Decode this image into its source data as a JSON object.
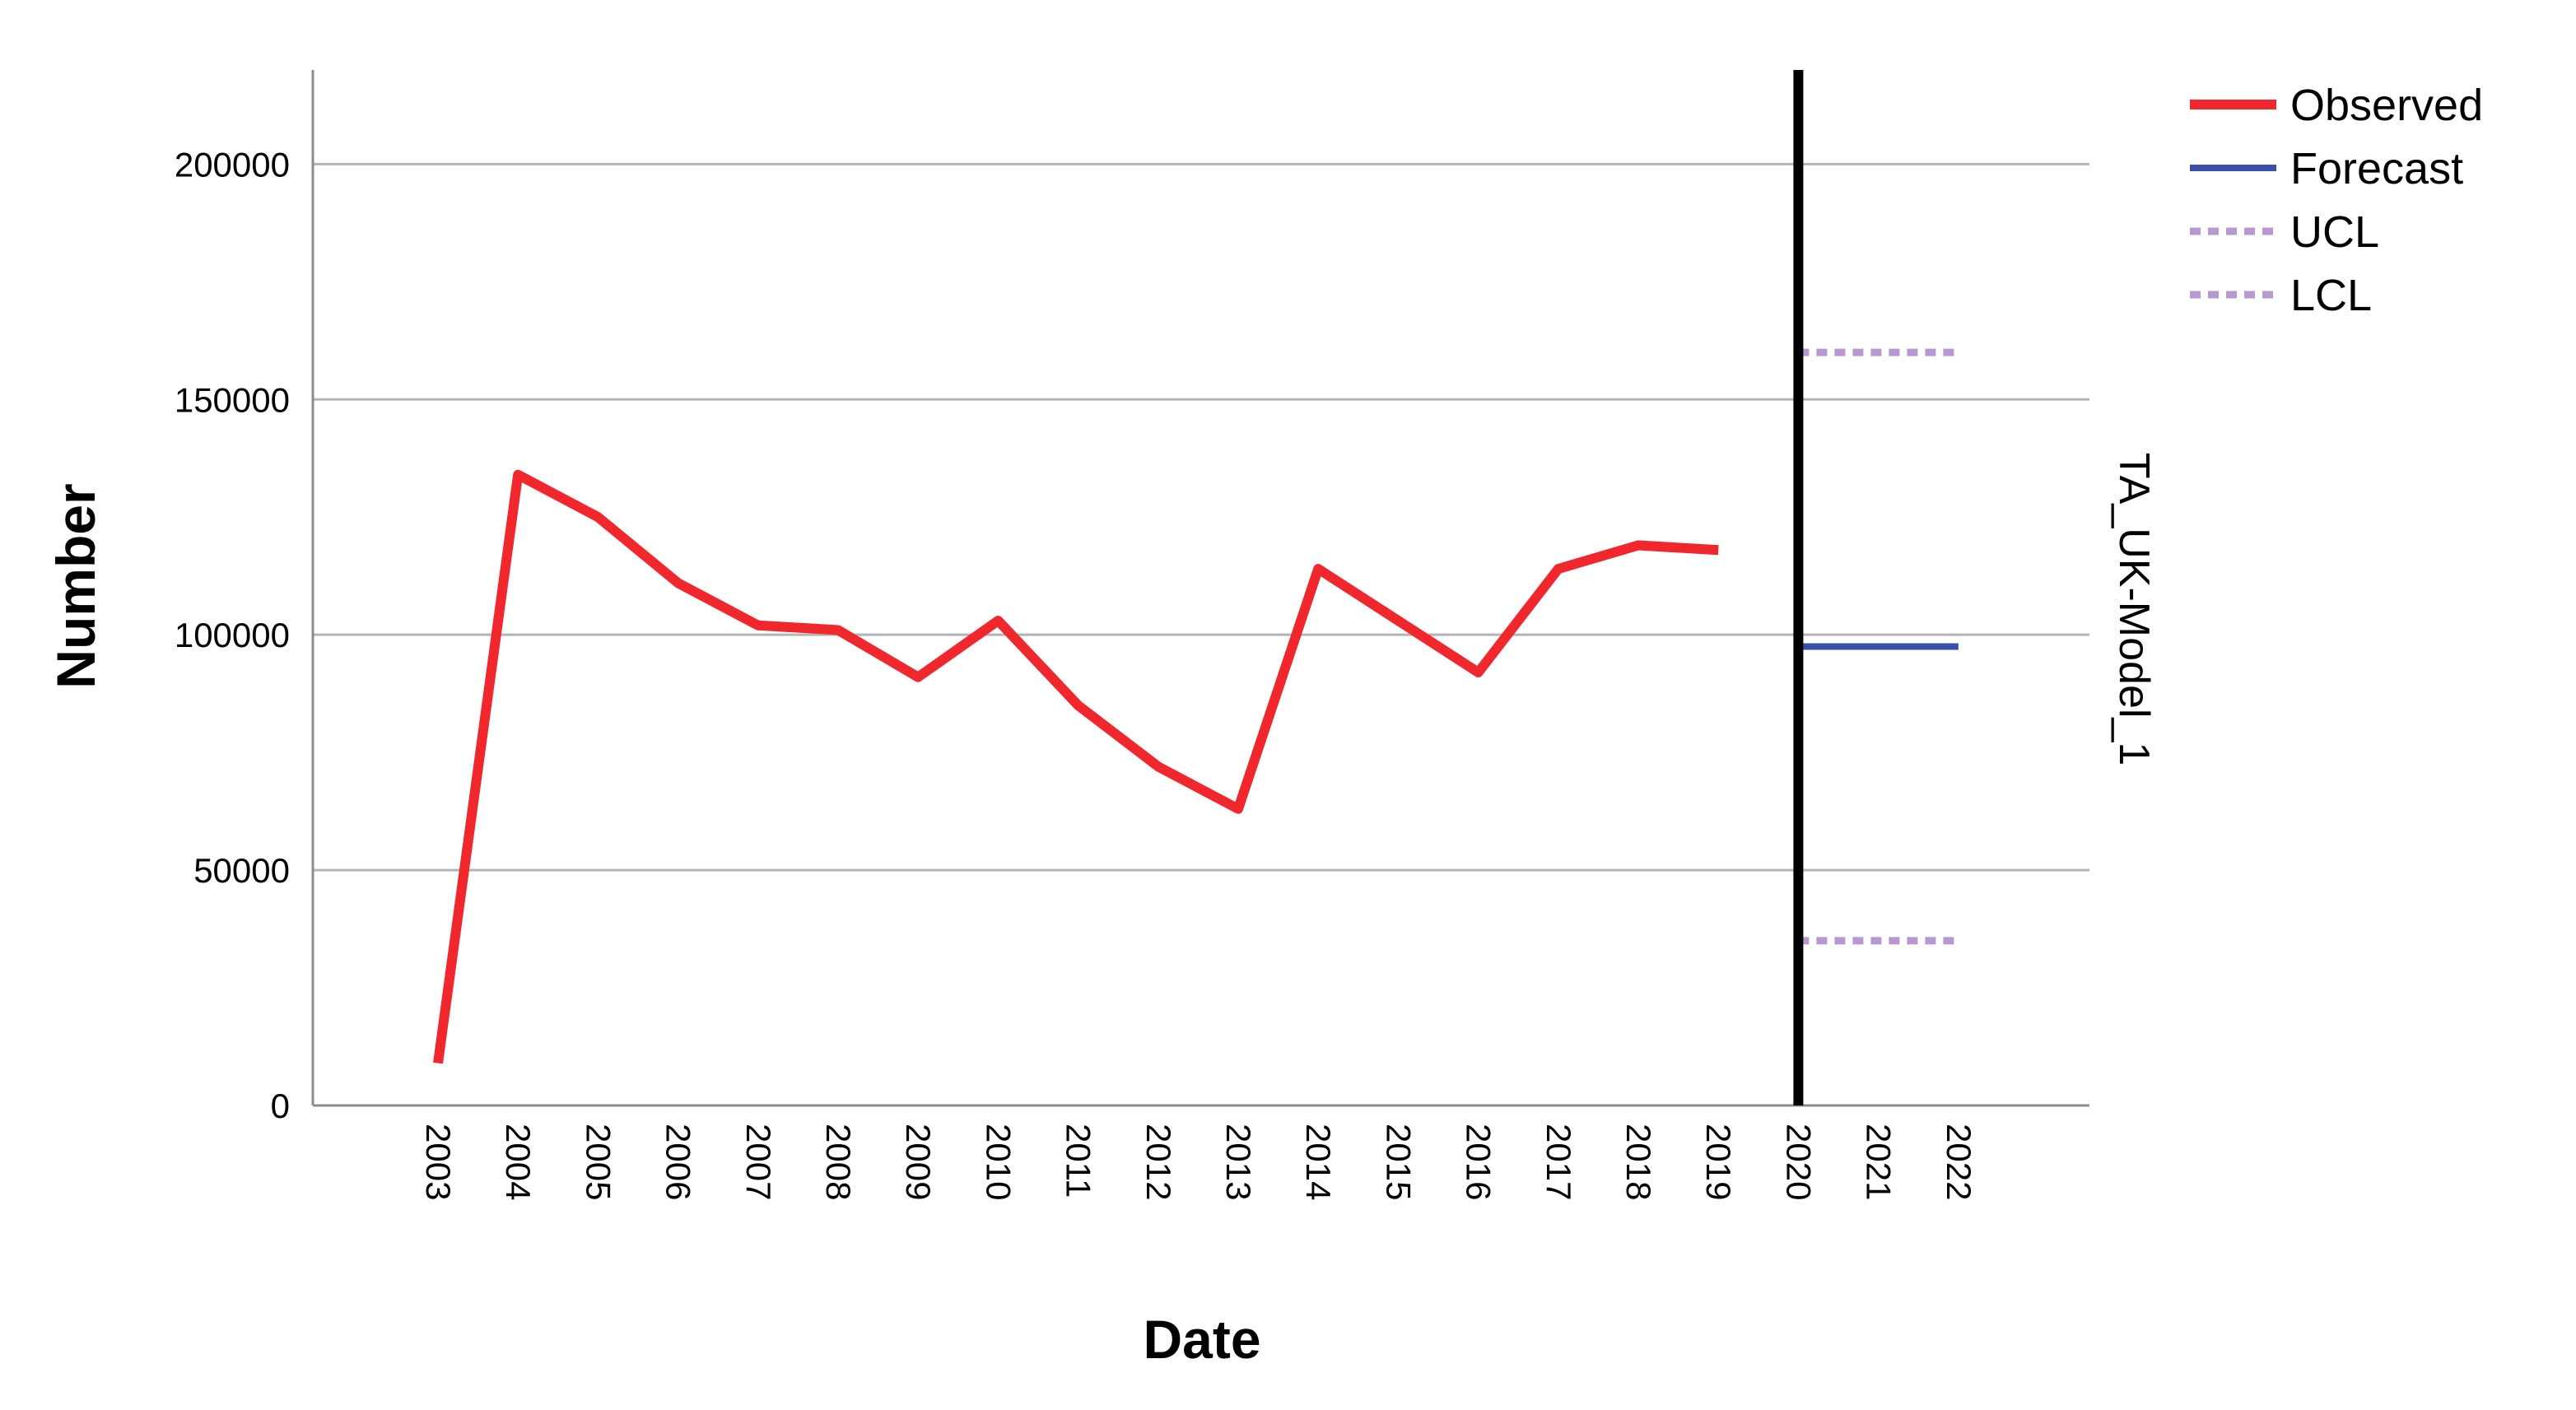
{
  "chart_data": {
    "type": "line",
    "xlabel": "Date",
    "ylabel": "Number",
    "panel_label": "TA_UK-Model_1",
    "ylim": [
      0,
      220000
    ],
    "y_ticks": [
      0,
      50000,
      100000,
      150000,
      200000
    ],
    "categories": [
      "2003",
      "2004",
      "2005",
      "2006",
      "2007",
      "2008",
      "2009",
      "2010",
      "2011",
      "2012",
      "2013",
      "2014",
      "2015",
      "2016",
      "2017",
      "2018",
      "2019",
      "2020",
      "2021",
      "2022"
    ],
    "reference_line_x": "2020",
    "grid": true,
    "legend_position": "top-right",
    "series": [
      {
        "name": "Observed",
        "color": "#f0282d",
        "style": "solid",
        "x": [
          "2003",
          "2004",
          "2005",
          "2006",
          "2007",
          "2008",
          "2009",
          "2010",
          "2011",
          "2012",
          "2013",
          "2014",
          "2015",
          "2016",
          "2017",
          "2018",
          "2019"
        ],
        "values": [
          9000,
          134000,
          125000,
          111000,
          102000,
          101000,
          91000,
          103000,
          85000,
          72000,
          63000,
          114000,
          103000,
          92000,
          114000,
          119000,
          118000
        ]
      },
      {
        "name": "Forecast",
        "color": "#3a4fa8",
        "style": "solid",
        "x": [
          "2020",
          "2021",
          "2022"
        ],
        "values": [
          97500,
          97500,
          97500
        ]
      },
      {
        "name": "UCL",
        "color": "#b898d2",
        "style": "dotted",
        "x": [
          "2020",
          "2021",
          "2022"
        ],
        "values": [
          160000,
          160000,
          160000
        ]
      },
      {
        "name": "LCL",
        "color": "#b898d2",
        "style": "dotted",
        "x": [
          "2020",
          "2021",
          "2022"
        ],
        "values": [
          35000,
          35000,
          35000
        ]
      }
    ]
  }
}
